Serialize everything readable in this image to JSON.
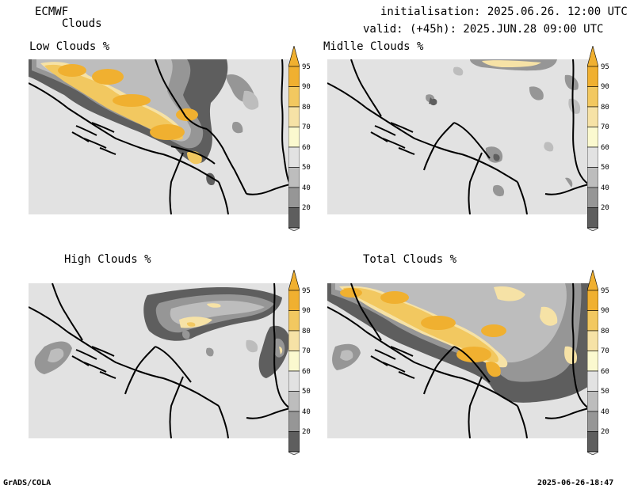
{
  "header": {
    "model": "ECMWF",
    "product": "Clouds",
    "initialisation": "initialisation: 2025.06.26. 12:00 UTC",
    "valid": "valid: (+45h): 2025.JUN.28 09:00 UTC"
  },
  "panels": [
    {
      "title": "Low Clouds %"
    },
    {
      "title": "Midlle Clouds %"
    },
    {
      "title": "High Clouds %"
    },
    {
      "title": "Total Clouds %"
    }
  ],
  "colorbar": {
    "levels": [
      "95",
      "90",
      "80",
      "70",
      "60",
      "50",
      "40",
      "20"
    ],
    "colors": {
      "c95": "#f0b030",
      "c90": "#f2c860",
      "c80": "#f6e2a6",
      "c70": "#fbf9cf",
      "c60": "#e2e2e2",
      "c50": "#bdbdbd",
      "c40": "#969696",
      "c20": "#5e5e5e",
      "low": "#e2e2e2"
    }
  },
  "footer": {
    "left": "GrADS/COLA",
    "right": "2025-06-26-18:47"
  }
}
